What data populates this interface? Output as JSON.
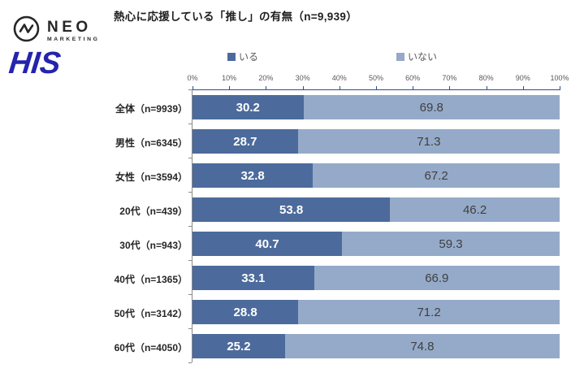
{
  "logos": {
    "neo": {
      "name": "NEO",
      "sub": "MARKETING",
      "color": "#262626"
    },
    "his": {
      "name": "HIS",
      "color": "#2424ad"
    }
  },
  "chart_data": {
    "type": "bar",
    "stacked": true,
    "orientation": "horizontal",
    "title": "熱心に応援している「推し」の有無（n=9,939）",
    "categories": [
      "全体（n=9939）",
      "男性（n=6345）",
      "女性（n=3594）",
      "20代（n=439）",
      "30代（n=943）",
      "40代（n=1365）",
      "50代（n=3142）",
      "60代（n=4050）"
    ],
    "series": [
      {
        "name": "いる",
        "color": "#4c6b9c",
        "values": [
          30.2,
          28.7,
          32.8,
          53.8,
          40.7,
          33.1,
          28.8,
          25.2
        ]
      },
      {
        "name": "いない",
        "color": "#95aac9",
        "values": [
          69.8,
          71.3,
          67.2,
          46.2,
          59.3,
          66.9,
          71.2,
          74.8
        ]
      }
    ],
    "x_ticks": [
      "0%",
      "10%",
      "20%",
      "30%",
      "40%",
      "50%",
      "60%",
      "70%",
      "80%",
      "90%",
      "100%"
    ],
    "xlim": [
      0,
      100
    ],
    "legend_position": "top",
    "value_axis_color": "#2e4d8e",
    "category_axis_color": "#8a8a8a",
    "grid": false
  }
}
